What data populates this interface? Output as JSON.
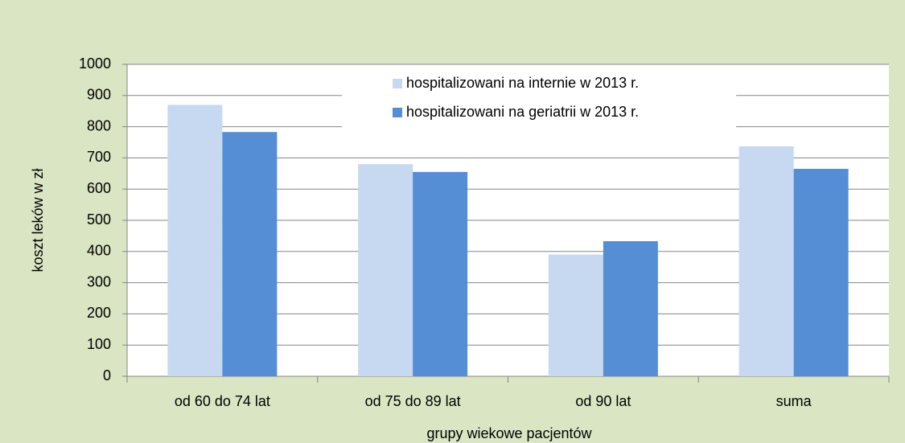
{
  "chart_data": {
    "type": "bar",
    "categories": [
      "od 60 do 74 lat",
      "od 75 do 89 lat",
      "od 90 lat",
      "suma"
    ],
    "series": [
      {
        "name": "hospitalizowani na internie w 2013 r.",
        "color": "#c6d9f0",
        "values": [
          870,
          680,
          390,
          737
        ]
      },
      {
        "name": "hospitalizowani na geriatrii w 2013 r.",
        "color": "#558ed5",
        "values": [
          783,
          655,
          433,
          665
        ]
      }
    ],
    "xlabel": "grupy wiekowe pacjentów",
    "ylabel": "koszt leków w zł",
    "ylim": [
      0,
      1000
    ],
    "yticks": [
      0,
      100,
      200,
      300,
      400,
      500,
      600,
      700,
      800,
      900,
      1000
    ],
    "grid": true,
    "legend": "top"
  }
}
